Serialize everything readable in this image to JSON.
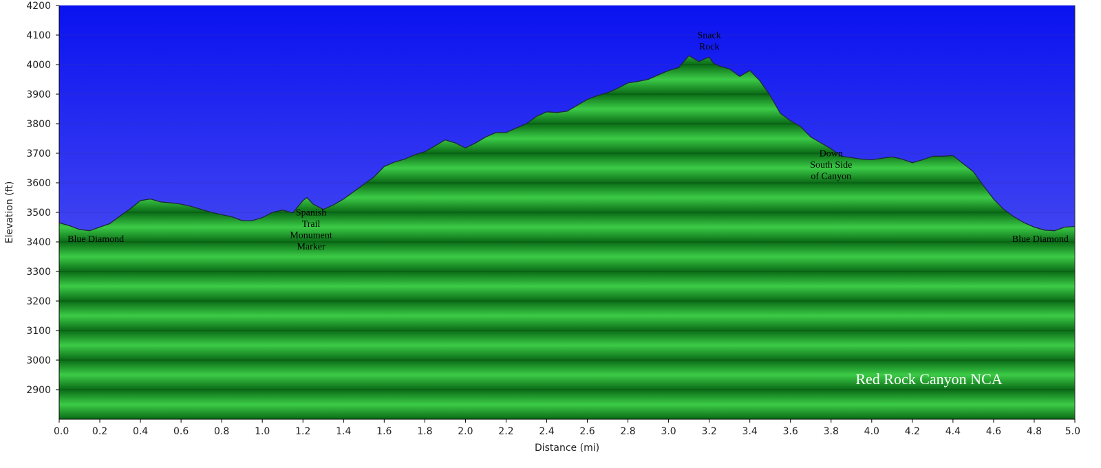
{
  "chart_data": {
    "type": "area",
    "xlabel": "Distance  (mi)",
    "ylabel": "Elevation (ft)",
    "xlim": [
      0,
      5.0
    ],
    "ylim": [
      2800,
      4200
    ],
    "xticks": [
      0.0,
      0.2,
      0.4,
      0.6,
      0.8,
      1.0,
      1.2,
      1.4,
      1.6,
      1.8,
      2.0,
      2.2,
      2.4,
      2.6,
      2.8,
      3.0,
      3.2,
      3.4,
      3.6,
      3.8,
      4.0,
      4.2,
      4.4,
      4.6,
      4.8,
      5.0
    ],
    "xtick_labels": [
      "0.0",
      "0.2",
      "0.4",
      "0.6",
      "0.8",
      "1.0",
      "1.2",
      "1.4",
      "1.6",
      "1.8",
      "2.0",
      "2.2",
      "2.4",
      "2.6",
      "2.8",
      "3.0",
      "3.2",
      "3.4",
      "3.6",
      "3.8",
      "4.0",
      "4.2",
      "4.4",
      "4.6",
      "4.8",
      "5.0"
    ],
    "yticks": [
      2900,
      3000,
      3100,
      3200,
      3300,
      3400,
      3500,
      3600,
      3700,
      3800,
      3900,
      4000,
      4100,
      4200
    ],
    "ytick_labels": [
      "2900",
      "3000",
      "3100",
      "3200",
      "3300",
      "3400",
      "3500",
      "3600",
      "3700",
      "3800",
      "3900",
      "4000",
      "4100",
      "4200"
    ],
    "grid": true,
    "colors": {
      "sky_top": "#0a12f0",
      "sky_bottom": "#6c6cf2",
      "fill_light": "#36c241",
      "fill_dark": "#0a6b16",
      "line": "#1f2a3a"
    },
    "series": [
      {
        "x": [
          0.0,
          0.05,
          0.1,
          0.15,
          0.2,
          0.25,
          0.3,
          0.35,
          0.4,
          0.45,
          0.5,
          0.55,
          0.6,
          0.65,
          0.7,
          0.75,
          0.8,
          0.85,
          0.9,
          0.95,
          1.0,
          1.05,
          1.1,
          1.15,
          1.2,
          1.22,
          1.25,
          1.3,
          1.35,
          1.4,
          1.45,
          1.5,
          1.55,
          1.6,
          1.65,
          1.7,
          1.75,
          1.8,
          1.85,
          1.9,
          1.95,
          2.0,
          2.05,
          2.1,
          2.15,
          2.2,
          2.25,
          2.3,
          2.35,
          2.4,
          2.45,
          2.5,
          2.55,
          2.6,
          2.65,
          2.7,
          2.75,
          2.8,
          2.85,
          2.9,
          2.95,
          3.0,
          3.05,
          3.1,
          3.15,
          3.18,
          3.2,
          3.22,
          3.25,
          3.3,
          3.35,
          3.4,
          3.45,
          3.5,
          3.55,
          3.6,
          3.65,
          3.7,
          3.75,
          3.8,
          3.85,
          3.9,
          3.95,
          4.0,
          4.05,
          4.1,
          4.15,
          4.2,
          4.25,
          4.3,
          4.35,
          4.4,
          4.45,
          4.5,
          4.55,
          4.6,
          4.65,
          4.7,
          4.75,
          4.8,
          4.85,
          4.9,
          4.95,
          5.0
        ],
        "y": [
          3465,
          3455,
          3442,
          3438,
          3450,
          3462,
          3488,
          3512,
          3540,
          3545,
          3535,
          3532,
          3528,
          3520,
          3510,
          3500,
          3492,
          3485,
          3472,
          3472,
          3482,
          3500,
          3508,
          3498,
          3540,
          3550,
          3528,
          3510,
          3525,
          3545,
          3570,
          3595,
          3620,
          3655,
          3670,
          3680,
          3695,
          3705,
          3725,
          3745,
          3735,
          3718,
          3735,
          3755,
          3770,
          3770,
          3785,
          3800,
          3825,
          3840,
          3838,
          3842,
          3862,
          3882,
          3895,
          3905,
          3920,
          3938,
          3943,
          3950,
          3965,
          3980,
          3990,
          4030,
          4010,
          4020,
          4025,
          4005,
          3995,
          3985,
          3960,
          3980,
          3945,
          3895,
          3835,
          3810,
          3790,
          3755,
          3735,
          3715,
          3690,
          3685,
          3680,
          3678,
          3683,
          3688,
          3680,
          3668,
          3678,
          3690,
          3690,
          3692,
          3665,
          3638,
          3590,
          3545,
          3510,
          3485,
          3465,
          3450,
          3440,
          3438,
          3450,
          3452
        ]
      }
    ],
    "annotations": [
      {
        "lines": [
          "Blue Diamond"
        ],
        "x": 0.18,
        "y": 3400
      },
      {
        "lines": [
          "Spanish",
          "Trail",
          "Monument",
          "Marker"
        ],
        "x": 1.24,
        "y": 3490
      },
      {
        "lines": [
          "Snack",
          "Rock"
        ],
        "x": 3.2,
        "y": 4090
      },
      {
        "lines": [
          "Down",
          "South Side",
          "of Canyon"
        ],
        "x": 3.8,
        "y": 3690
      },
      {
        "lines": [
          "Blue Diamond"
        ],
        "x": 4.83,
        "y": 3400
      }
    ],
    "watermark": "Red Rock Canyon NCA"
  }
}
